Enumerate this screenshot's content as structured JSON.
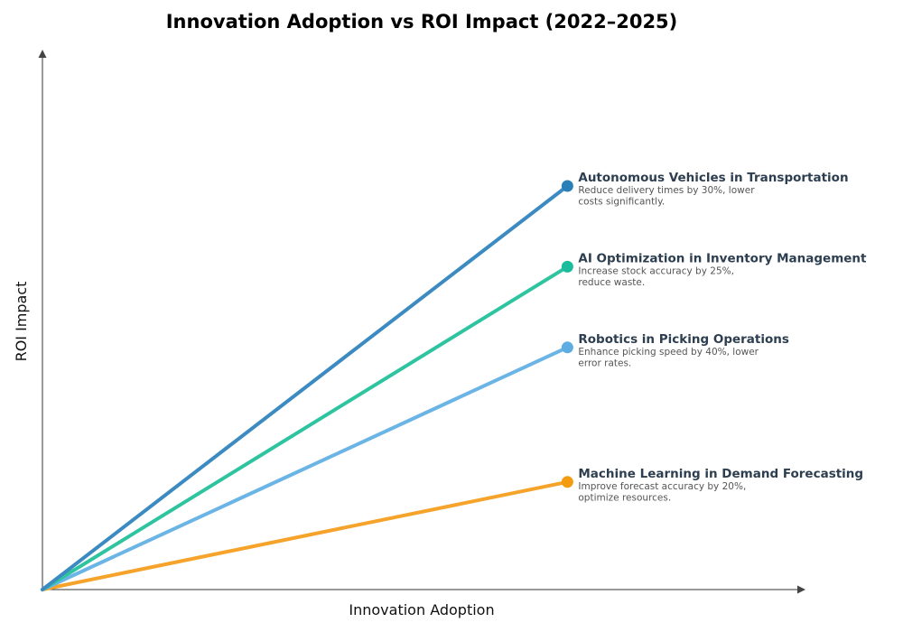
{
  "chart_data": {
    "type": "line",
    "title": "Innovation Adoption vs ROI Impact (2022–2025)",
    "xlabel": "Innovation Adoption",
    "ylabel": "ROI Impact",
    "xlim": [
      0,
      1.45
    ],
    "ylim": [
      0,
      1
    ],
    "grid": false,
    "legend": "none",
    "series": [
      {
        "name": "Autonomous Vehicles in Transportation",
        "desc": [
          "Reduce delivery times by 30%, lower",
          "costs significantly."
        ],
        "x": [
          0,
          1
        ],
        "y": [
          0,
          0.75
        ],
        "line_color": "#3b8bc2",
        "dot_color": "#2980b9"
      },
      {
        "name": "AI Optimization in Inventory Management",
        "desc": [
          "Increase stock accuracy by 25%,",
          "reduce waste."
        ],
        "x": [
          0,
          1
        ],
        "y": [
          0,
          0.6
        ],
        "line_color": "#2ec4a0",
        "dot_color": "#1abc9c"
      },
      {
        "name": "Robotics in Picking Operations",
        "desc": [
          "Enhance picking speed by 40%, lower",
          "error rates."
        ],
        "x": [
          0,
          1
        ],
        "y": [
          0,
          0.45
        ],
        "line_color": "#6ab4e6",
        "dot_color": "#5dade2"
      },
      {
        "name": "Machine Learning in Demand Forecasting",
        "desc": [
          "Improve forecast accuracy by 20%,",
          "optimize resources."
        ],
        "x": [
          0,
          1
        ],
        "y": [
          0,
          0.2
        ],
        "line_color": "#f5a32a",
        "dot_color": "#f39c12"
      }
    ]
  }
}
